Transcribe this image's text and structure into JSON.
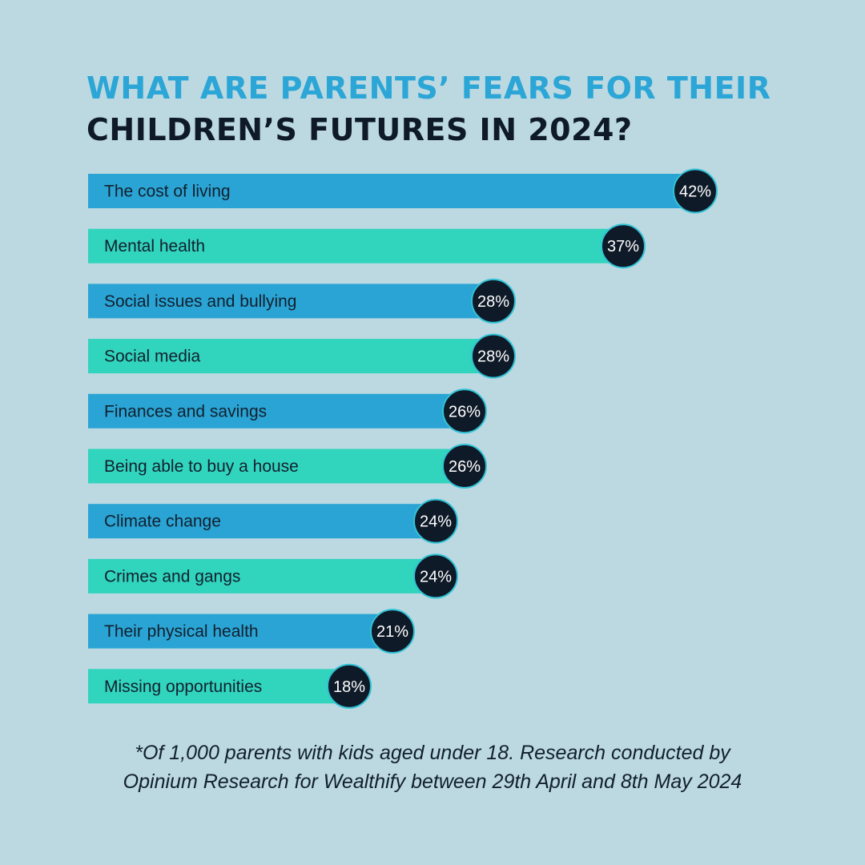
{
  "title": {
    "line1": "WHAT ARE PARENTS’ FEARS FOR THEIR",
    "line2": "CHILDREN’S FUTURES IN 2024?"
  },
  "footnote": {
    "line1": "*Of 1,000 parents with kids aged under 18. Research conducted by",
    "line2": "Opinium Research for Wealthify between 29th April and 8th May 2024"
  },
  "colors": {
    "background": "#bcd9e1",
    "bar_blue": "#2aa4d4",
    "bar_teal": "#31d4bd",
    "badge": "#0f1a28",
    "badge_outline": "#31c3d6",
    "title_accent": "#2ba6d6"
  },
  "chart_data": {
    "type": "bar",
    "orientation": "horizontal",
    "categories": [
      "The cost of living",
      "Mental health",
      "Social issues and bullying",
      "Social media",
      "Finances and savings",
      "Being able to buy a house",
      "Climate change",
      "Crimes and gangs",
      "Their physical health",
      "Missing opportunities"
    ],
    "values": [
      42,
      37,
      28,
      28,
      26,
      26,
      24,
      24,
      21,
      18
    ],
    "value_labels": [
      "42%",
      "37%",
      "28%",
      "28%",
      "26%",
      "26%",
      "24%",
      "24%",
      "21%",
      "18%"
    ],
    "unit": "%",
    "title": "WHAT ARE PARENTS’ FEARS FOR THEIR CHILDREN’S FUTURES IN 2024?",
    "xlabel": "",
    "ylabel": "",
    "grid": false
  }
}
